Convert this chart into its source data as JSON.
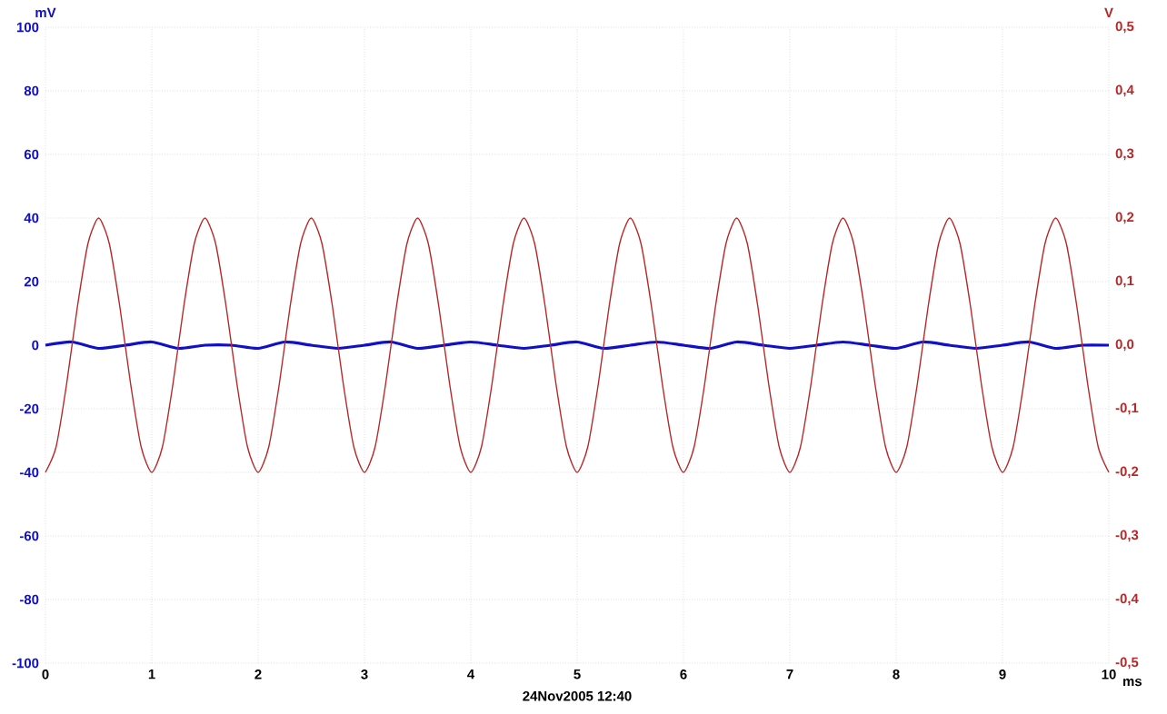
{
  "chart_data": {
    "type": "line",
    "xlabel": "ms",
    "ylabel": "mV",
    "y2label": "V",
    "xlim": [
      0,
      10
    ],
    "xticks": [
      0,
      1,
      2,
      3,
      4,
      5,
      6,
      7,
      8,
      9,
      10
    ],
    "ylim": [
      -100,
      100
    ],
    "yticks": [
      -100,
      -80,
      -60,
      -40,
      -20,
      0,
      20,
      40,
      60,
      80,
      100
    ],
    "y2lim": [
      -0.5,
      0.5
    ],
    "y2ticks": [
      {
        "value": -0.5,
        "label": "-0,5"
      },
      {
        "value": -0.4,
        "label": "-0,4"
      },
      {
        "value": -0.3,
        "label": "-0,3"
      },
      {
        "value": -0.2,
        "label": "-0,2"
      },
      {
        "value": -0.1,
        "label": "-0,1"
      },
      {
        "value": 0,
        "label": "0,0"
      },
      {
        "value": 0.1,
        "label": "0,1"
      },
      {
        "value": 0.2,
        "label": "0,2"
      },
      {
        "value": 0.3,
        "label": "0,3"
      },
      {
        "value": 0.4,
        "label": "0,4"
      },
      {
        "value": 0.5,
        "label": "0,5"
      }
    ],
    "grid": true,
    "annotations": [
      "24Nov2005  12:40"
    ],
    "series": [
      {
        "color": "#1010c8",
        "x": [
          0,
          0.25,
          0.5,
          0.75,
          1,
          1.25,
          1.5,
          1.75,
          2,
          2.25,
          2.5,
          2.75,
          3,
          3.25,
          3.5,
          3.75,
          4,
          4.25,
          4.5,
          4.75,
          5,
          5.25,
          5.5,
          5.75,
          6,
          6.25,
          6.5,
          6.75,
          7,
          7.25,
          7.5,
          7.75,
          8,
          8.25,
          8.5,
          8.75,
          9,
          9.25,
          9.5,
          9.75,
          10
        ],
        "values": [
          0,
          1,
          -1,
          0,
          1,
          -1,
          0,
          0,
          -1,
          1,
          0,
          -1,
          0,
          1,
          -1,
          0,
          1,
          0,
          -1,
          0,
          1,
          -1,
          0,
          1,
          0,
          -1,
          1,
          0,
          -1,
          0,
          1,
          0,
          -1,
          1,
          0,
          -1,
          0,
          1,
          -1,
          0,
          0
        ]
      },
      {
        "color": "#b82828",
        "axis": "y2",
        "x": [
          0,
          0.1,
          0.2,
          0.3,
          0.4,
          0.5,
          0.6,
          0.7,
          0.8,
          0.9,
          1,
          1.1,
          1.2,
          1.3,
          1.4,
          1.5,
          1.6,
          1.7,
          1.8,
          1.9,
          2,
          2.1,
          2.2,
          2.3,
          2.4,
          2.5,
          2.6,
          2.7,
          2.8,
          2.9,
          3,
          3.1,
          3.2,
          3.3,
          3.4,
          3.5,
          3.6,
          3.7,
          3.8,
          3.9,
          4,
          4.1,
          4.2,
          4.3,
          4.4,
          4.5,
          4.6,
          4.7,
          4.8,
          4.9,
          5,
          5.1,
          5.2,
          5.3,
          5.4,
          5.5,
          5.6,
          5.7,
          5.8,
          5.9,
          6,
          6.1,
          6.2,
          6.3,
          6.4,
          6.5,
          6.6,
          6.7,
          6.8,
          6.9,
          7,
          7.1,
          7.2,
          7.3,
          7.4,
          7.5,
          7.6,
          7.7,
          7.8,
          7.9,
          8,
          8.1,
          8.2,
          8.3,
          8.4,
          8.5,
          8.6,
          8.7,
          8.8,
          8.9,
          9,
          9.1,
          9.2,
          9.3,
          9.4,
          9.5,
          9.6,
          9.7,
          9.8,
          9.9,
          10
        ],
        "values": [
          -0.2,
          -0.16,
          -0.06,
          0.06,
          0.16,
          0.2,
          0.16,
          0.06,
          -0.06,
          -0.16,
          -0.2,
          -0.16,
          -0.06,
          0.06,
          0.16,
          0.2,
          0.16,
          0.06,
          -0.06,
          -0.16,
          -0.2,
          -0.16,
          -0.06,
          0.06,
          0.16,
          0.2,
          0.16,
          0.06,
          -0.06,
          -0.16,
          -0.2,
          -0.16,
          -0.06,
          0.06,
          0.16,
          0.2,
          0.16,
          0.06,
          -0.06,
          -0.16,
          -0.2,
          -0.16,
          -0.06,
          0.06,
          0.16,
          0.2,
          0.16,
          0.06,
          -0.06,
          -0.16,
          -0.2,
          -0.16,
          -0.06,
          0.06,
          0.16,
          0.2,
          0.16,
          0.06,
          -0.06,
          -0.16,
          -0.2,
          -0.16,
          -0.06,
          0.06,
          0.16,
          0.2,
          0.16,
          0.06,
          -0.06,
          -0.16,
          -0.2,
          -0.16,
          -0.06,
          0.06,
          0.16,
          0.2,
          0.16,
          0.06,
          -0.06,
          -0.16,
          -0.2,
          -0.16,
          -0.06,
          0.06,
          0.16,
          0.2,
          0.16,
          0.06,
          -0.06,
          -0.16,
          -0.2,
          -0.16,
          -0.06,
          0.06,
          0.16,
          0.2,
          0.16,
          0.06,
          -0.06,
          -0.16,
          -0.2
        ]
      }
    ]
  }
}
